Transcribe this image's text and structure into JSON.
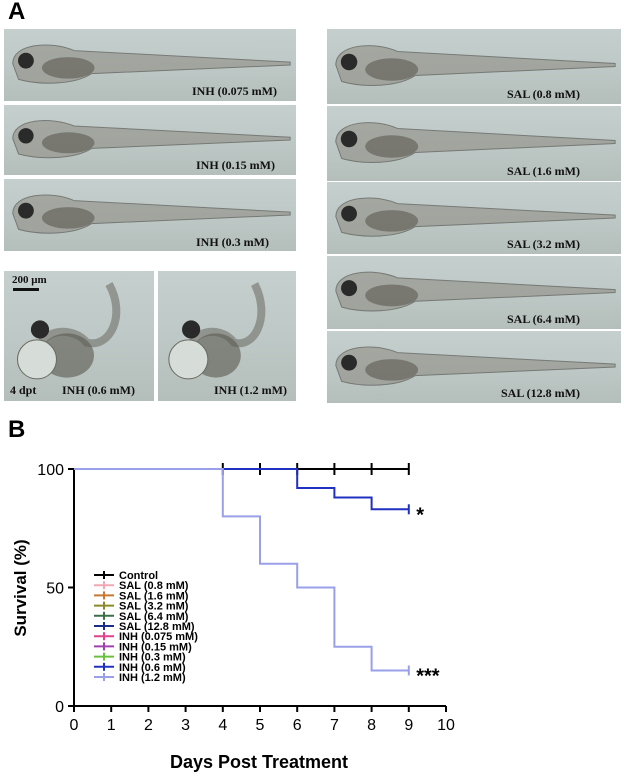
{
  "panel_a": {
    "letter": "A",
    "left_images": [
      {
        "label": "INH (0.075 mM)"
      },
      {
        "label": "INH (0.15 mM)"
      },
      {
        "label": "INH (0.3 mM)"
      }
    ],
    "bottom_images": [
      {
        "label": "INH (0.6 mM)",
        "scale_label": "200 μm",
        "time_label": "4 dpt"
      },
      {
        "label": "INH (1.2 mM)"
      }
    ],
    "right_images": [
      {
        "label": "SAL (0.8 mM)"
      },
      {
        "label": "SAL (1.6 mM)"
      },
      {
        "label": "SAL (3.2 mM)"
      },
      {
        "label": "SAL (6.4 mM)"
      },
      {
        "label": "SAL (12.8 mM)"
      }
    ]
  },
  "panel_b": {
    "letter": "B"
  },
  "chart_data": {
    "type": "line",
    "xlabel": "Days Post Treatment",
    "ylabel": "Survival  (%)",
    "xlim": [
      0,
      10
    ],
    "ylim": [
      0,
      100
    ],
    "x_ticks": [
      "0",
      "1",
      "2",
      "3",
      "4",
      "5",
      "6",
      "7",
      "8",
      "9",
      "10"
    ],
    "y_ticks": [
      "0",
      "50",
      "100"
    ],
    "legend_position": "lower-left",
    "series": [
      {
        "name": "Control",
        "color": "#000000",
        "x": [
          0,
          9
        ],
        "y": [
          100,
          100
        ],
        "censor_x": [
          4,
          5,
          6,
          7,
          8,
          9
        ]
      },
      {
        "name": "SAL (0.8 mM)",
        "color": "#f0a8b4",
        "x": [
          0,
          9
        ],
        "y": [
          100,
          100
        ]
      },
      {
        "name": "SAL (1.6 mM)",
        "color": "#c87830",
        "x": [
          0,
          9
        ],
        "y": [
          100,
          100
        ]
      },
      {
        "name": "SAL (3.2 mM)",
        "color": "#8a8a28",
        "x": [
          0,
          9
        ],
        "y": [
          100,
          100
        ]
      },
      {
        "name": "SAL (6.4 mM)",
        "color": "#3c7048",
        "x": [
          0,
          9
        ],
        "y": [
          100,
          100
        ]
      },
      {
        "name": "SAL (12.8 mM)",
        "color": "#1c2c8a",
        "x": [
          0,
          9
        ],
        "y": [
          100,
          100
        ]
      },
      {
        "name": "INH (0.075 mM)",
        "color": "#e0408c",
        "x": [
          0,
          9
        ],
        "y": [
          100,
          100
        ]
      },
      {
        "name": "INH (0.15 mM)",
        "color": "#a040b0",
        "x": [
          0,
          9
        ],
        "y": [
          100,
          100
        ]
      },
      {
        "name": "INH (0.3 mM)",
        "color": "#6cc040",
        "x": [
          0,
          9
        ],
        "y": [
          100,
          100
        ]
      },
      {
        "name": "INH (0.6 mM)",
        "color": "#2030c0",
        "x": [
          0,
          6,
          6,
          7,
          7,
          8,
          8,
          9
        ],
        "y": [
          100,
          100,
          92,
          92,
          88,
          88,
          83,
          83
        ]
      },
      {
        "name": "INH (1.2 mM)",
        "color": "#9aa0e8",
        "x": [
          0,
          4,
          4,
          5,
          5,
          6,
          6,
          7,
          7,
          8,
          8,
          9
        ],
        "y": [
          100,
          100,
          80,
          80,
          60,
          60,
          50,
          50,
          25,
          25,
          15,
          15
        ]
      }
    ],
    "annotations": [
      {
        "text": "*",
        "x": 9.2,
        "y": 83
      },
      {
        "text": "***",
        "x": 9.2,
        "y": 15
      }
    ]
  }
}
